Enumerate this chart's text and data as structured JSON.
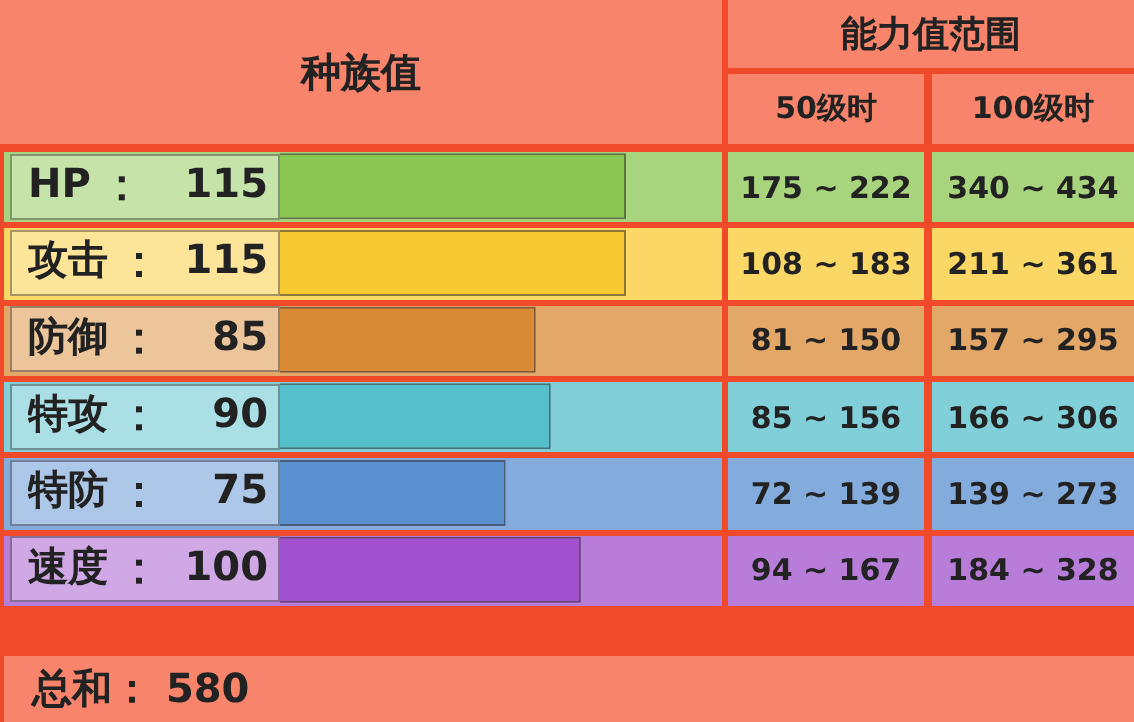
{
  "chart_data": {
    "type": "bar",
    "orientation": "horizontal",
    "title": "种族值",
    "categories": [
      "HP",
      "攻击",
      "防御",
      "特攻",
      "特防",
      "速度"
    ],
    "values": [
      115,
      115,
      85,
      90,
      75,
      100
    ],
    "colors": [
      "#8cc653",
      "#f9c931",
      "#d98a35",
      "#56bfcc",
      "#5a8fd0",
      "#a050cc"
    ],
    "data_labels": true,
    "legend": false,
    "annotations": [
      "能力值范围",
      "50级时",
      "100级时",
      "175 ~ 222",
      "340 ~ 434",
      "108 ~ 183",
      "211 ~ 361",
      "81 ~ 150",
      "157 ~ 295",
      "85 ~ 156",
      "166 ~ 306",
      "72 ~ 139",
      "139 ~ 273",
      "94 ~ 167",
      "184 ~ 328",
      "总和： 580"
    ]
  }
}
